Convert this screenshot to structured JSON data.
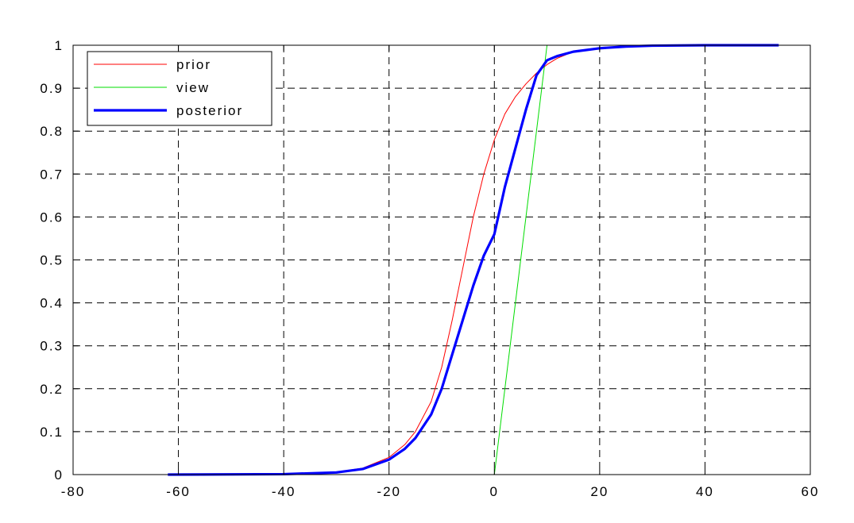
{
  "chart_data": {
    "type": "line",
    "title": "",
    "xlabel": "",
    "ylabel": "",
    "xlim": [
      -80,
      60
    ],
    "ylim": [
      0,
      1
    ],
    "xticks": [
      -80,
      -60,
      -40,
      -20,
      0,
      20,
      40,
      60
    ],
    "xtick_labels": [
      "-80",
      "-60",
      "-40",
      "-20",
      "0",
      "20",
      "40",
      "60"
    ],
    "yticks": [
      0,
      0.1,
      0.2,
      0.3,
      0.4,
      0.5,
      0.6,
      0.7,
      0.8,
      0.9,
      1
    ],
    "ytick_labels": [
      "0",
      "0.1",
      "0.2",
      "0.3",
      "0.4",
      "0.5",
      "0.6",
      "0.7",
      "0.8",
      "0.9",
      "1"
    ],
    "grid": true,
    "grid_style": "dashed",
    "legend_position": "top-left",
    "series": [
      {
        "name": "prior",
        "color": "#ff0000",
        "style": "thin",
        "x": [
          -62,
          -40,
          -30,
          -25,
          -20,
          -17,
          -15,
          -12,
          -10,
          -8,
          -6,
          -4,
          -2,
          0,
          2,
          4,
          6,
          8,
          10,
          12,
          15,
          20,
          25,
          30,
          40,
          54
        ],
        "y": [
          0,
          0.001,
          0.006,
          0.015,
          0.04,
          0.07,
          0.1,
          0.17,
          0.25,
          0.36,
          0.48,
          0.6,
          0.7,
          0.78,
          0.84,
          0.88,
          0.91,
          0.935,
          0.955,
          0.97,
          0.985,
          0.994,
          0.998,
          0.999,
          1,
          1
        ]
      },
      {
        "name": "view",
        "color": "#00dd00",
        "style": "thin",
        "x": [
          -62,
          0,
          10,
          20,
          54
        ],
        "y": [
          0,
          0,
          1,
          1,
          1
        ]
      },
      {
        "name": "posterior",
        "color": "#0000ff",
        "style": "thick",
        "x": [
          -62,
          -40,
          -30,
          -25,
          -20,
          -17,
          -15,
          -12,
          -10,
          -8,
          -6,
          -4,
          -2,
          0,
          2,
          4,
          6,
          8,
          10,
          12,
          15,
          20,
          25,
          30,
          40,
          54
        ],
        "y": [
          0,
          0.001,
          0.005,
          0.013,
          0.035,
          0.06,
          0.085,
          0.14,
          0.2,
          0.28,
          0.36,
          0.44,
          0.51,
          0.56,
          0.67,
          0.76,
          0.85,
          0.93,
          0.965,
          0.975,
          0.985,
          0.993,
          0.997,
          0.999,
          1,
          1
        ]
      }
    ]
  }
}
